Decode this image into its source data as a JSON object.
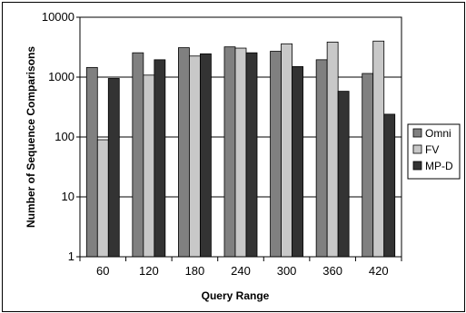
{
  "chart_data": {
    "type": "bar",
    "xlabel": "Query Range",
    "ylabel": "Number of Sequence Comparisons",
    "categories": [
      "60",
      "120",
      "180",
      "240",
      "300",
      "360",
      "420"
    ],
    "y_scale": "log",
    "ylim": [
      1,
      10000
    ],
    "y_ticks": [
      "1",
      "10",
      "100",
      "1000",
      "10000"
    ],
    "grid": "horizontal",
    "legend_position": "right",
    "series": [
      {
        "name": "Omni",
        "color": "#808080",
        "values": [
          1450,
          2550,
          3100,
          3200,
          2700,
          1950,
          1150
        ]
      },
      {
        "name": "FV",
        "color": "#c8c8c8",
        "values": [
          90,
          1080,
          2250,
          3050,
          3600,
          3850,
          4000
        ]
      },
      {
        "name": "MP-D",
        "color": "#333333",
        "values": [
          950,
          1950,
          2450,
          2550,
          1500,
          580,
          240
        ]
      }
    ]
  }
}
